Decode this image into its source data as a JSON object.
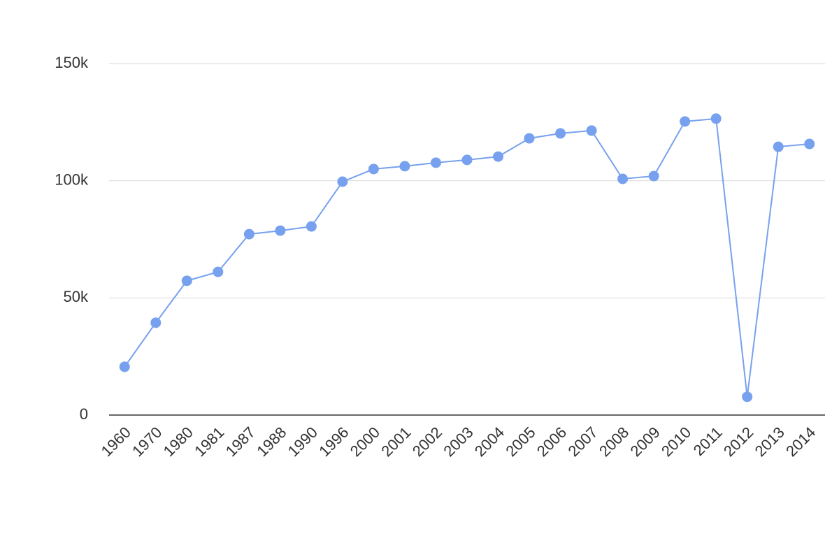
{
  "chart_data": {
    "type": "line",
    "categories": [
      "1960",
      "1970",
      "1980",
      "1981",
      "1987",
      "1988",
      "1990",
      "1996",
      "2000",
      "2001",
      "2002",
      "2003",
      "2004",
      "2005",
      "2006",
      "2007",
      "2008",
      "2009",
      "2010",
      "2011",
      "2012",
      "2013",
      "2014"
    ],
    "values": [
      20600,
      39400,
      57300,
      61100,
      77200,
      78700,
      80500,
      99600,
      105000,
      106200,
      107700,
      108900,
      110300,
      118100,
      120200,
      121400,
      100800,
      102000,
      125300,
      126500,
      7800,
      114500,
      115700
    ],
    "color": "#77a1ee",
    "ylim": [
      0,
      150000
    ],
    "yticks": [
      0,
      {
        "value": 50000,
        "label": "50k"
      },
      {
        "value": 100000,
        "label": "100k"
      },
      {
        "value": 150000,
        "label": "150k"
      }
    ],
    "grid": true
  }
}
